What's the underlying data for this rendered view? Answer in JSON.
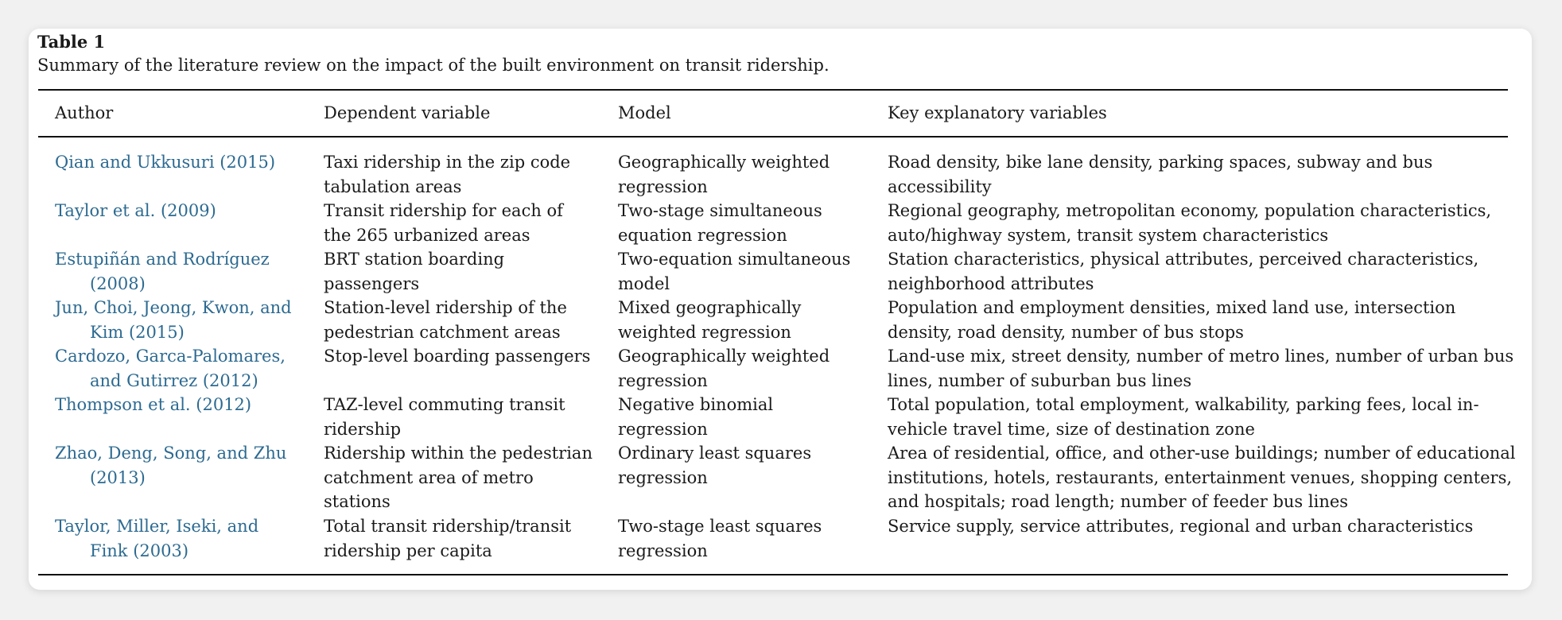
{
  "table": {
    "label": "Table 1",
    "caption": "Summary of the literature review on the impact of the built environment on transit ridership.",
    "headers": [
      "Author",
      "Dependent variable",
      "Model",
      "Key explanatory variables"
    ],
    "rows": [
      {
        "author": "Qian and Ukkusuri (2015)",
        "dependent": "Taxi ridership in the zip code tabulation areas",
        "model": "Geographically weighted regression",
        "variables": "Road density, bike lane density, parking spaces, subway and bus accessibility"
      },
      {
        "author": "Taylor et al. (2009)",
        "dependent": "Transit ridership for each of the 265 urbanized areas",
        "model": "Two-stage simultaneous equation regression",
        "variables": "Regional geography, metropolitan economy, population characteristics, auto/highway system, transit system characteristics"
      },
      {
        "author": "Estupiñán and Rodríguez (2008)",
        "dependent": "BRT station boarding passengers",
        "model": "Two-equation simultaneous model",
        "variables": "Station characteristics, physical attributes, perceived characteristics, neighborhood attributes"
      },
      {
        "author": "Jun, Choi, Jeong, Kwon, and Kim (2015)",
        "dependent": "Station-level ridership of the pedestrian catchment areas",
        "model": "Mixed geographically weighted regression",
        "variables": "Population and employment densities, mixed land use, intersection density, road density, number of bus stops"
      },
      {
        "author": "Cardozo, Garca-Palomares, and Gutirrez (2012)",
        "dependent": "Stop-level boarding passengers",
        "model": "Geographically weighted regression",
        "variables": "Land-use mix, street density, number of metro lines, number of urban bus lines, number of suburban bus lines"
      },
      {
        "author": "Thompson et al. (2012)",
        "dependent": "TAZ-level commuting transit ridership",
        "model": "Negative binomial regression",
        "variables": "Total population, total employment, walkability, parking fees, local in-vehicle travel time, size of destination zone"
      },
      {
        "author": "Zhao, Deng, Song, and Zhu (2013)",
        "dependent": "Ridership within the pedestrian catchment area of metro stations",
        "model": "Ordinary least squares regression",
        "variables": "Area of residential, office, and other-use buildings; number of educational institutions, hotels, restaurants, entertainment venues, shopping centers, and hospitals; road length; number of feeder bus lines"
      },
      {
        "author": "Taylor, Miller, Iseki, and Fink (2003)",
        "dependent": "Total transit ridership/transit ridership per capita",
        "model": "Two-stage least squares regression",
        "variables": "Service supply, service attributes, regional and urban characteristics"
      }
    ]
  }
}
